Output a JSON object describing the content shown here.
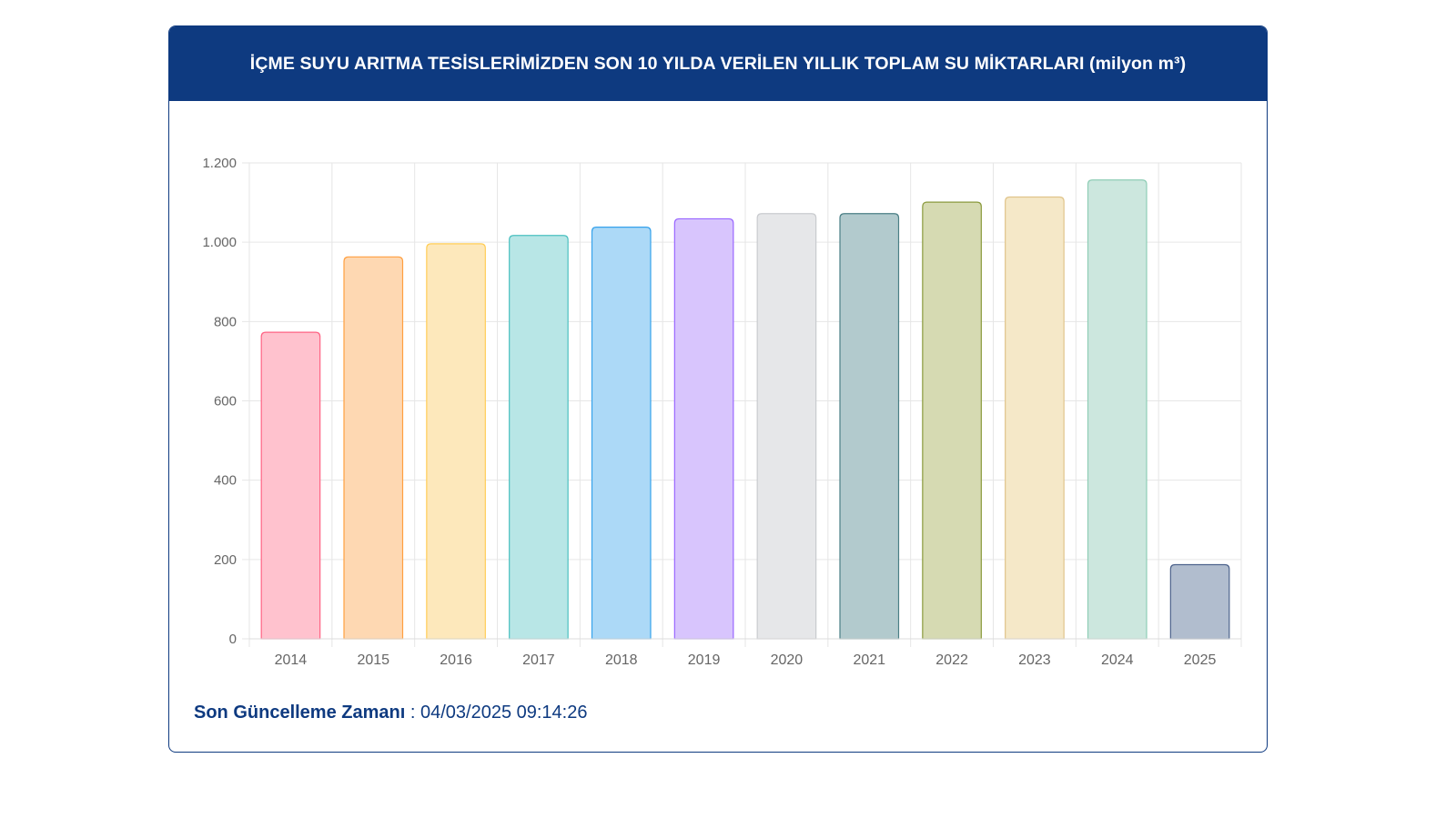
{
  "header": {
    "title": "İÇME SUYU ARITMA TESİSLERİMİZDEN SON 10 YILDA VERİLEN YILLIK TOPLAM SU MİKTARLARI (milyon m³)"
  },
  "footer": {
    "label": "Son Güncelleme Zamanı",
    "separator": " : ",
    "timestamp": "04/03/2025 09:14:26"
  },
  "colors": {
    "header_bg": "#0e3a80",
    "header_text": "#ffffff",
    "grid": "#e6e6e6",
    "tick_text": "#666666"
  },
  "chart_data": {
    "type": "bar",
    "categories": [
      "2014",
      "2015",
      "2016",
      "2017",
      "2018",
      "2019",
      "2020",
      "2021",
      "2022",
      "2023",
      "2024",
      "2025"
    ],
    "values": [
      773,
      963,
      996,
      1017,
      1038,
      1059,
      1072,
      1072,
      1101,
      1114,
      1157,
      187
    ],
    "ylim": [
      0,
      1200
    ],
    "yticks": [
      0,
      200,
      400,
      600,
      800,
      1000,
      1200
    ],
    "ytick_labels": [
      "0",
      "200",
      "400",
      "600",
      "800",
      "1.000",
      "1.200"
    ],
    "grid": true,
    "legend": "none",
    "bar_fills": [
      "#ffc2ce",
      "#fed8b2",
      "#fde8bb",
      "#b8e6e6",
      "#acd9f7",
      "#d8c5fd",
      "#e6e7e9",
      "#b2cacd",
      "#d6dab2",
      "#f5e8c8",
      "#cce7de",
      "#b1bdce"
    ],
    "bar_strokes": [
      "#ff6384",
      "#ff9f40",
      "#ffcd56",
      "#4bc0c0",
      "#36a2eb",
      "#9966ff",
      "#c9cbcf",
      "#4a7f85",
      "#8a9a3c",
      "#e0c48a",
      "#8fcdb6",
      "#4d638c"
    ]
  }
}
